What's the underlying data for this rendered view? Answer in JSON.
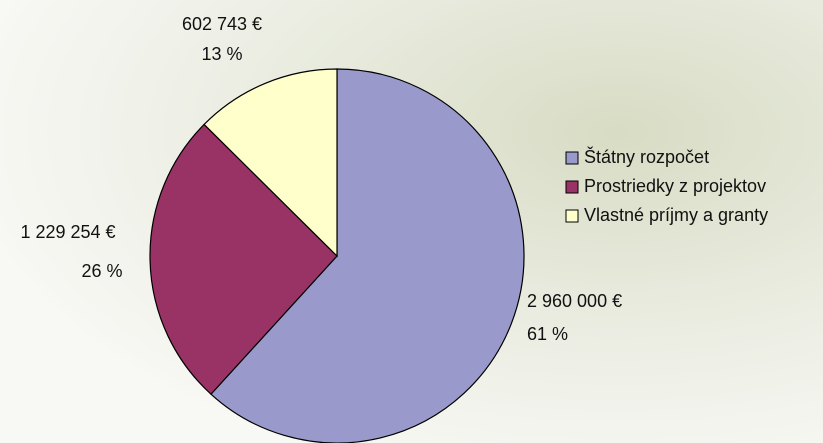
{
  "chart_data": {
    "type": "pie",
    "categories": [
      "Štátny rozpočet",
      "Prostriedky z projektov",
      "Vlastné príjmy a granty"
    ],
    "values": [
      2960000,
      1229254,
      602743
    ],
    "value_labels": [
      "2 960 000 €",
      "1 229 254 €",
      "602 743 €"
    ],
    "percent_labels": [
      "61 %",
      "26 %",
      "13 %"
    ],
    "colors": [
      "#9999cc",
      "#993366",
      "#ffffcc"
    ],
    "legend": "right"
  }
}
